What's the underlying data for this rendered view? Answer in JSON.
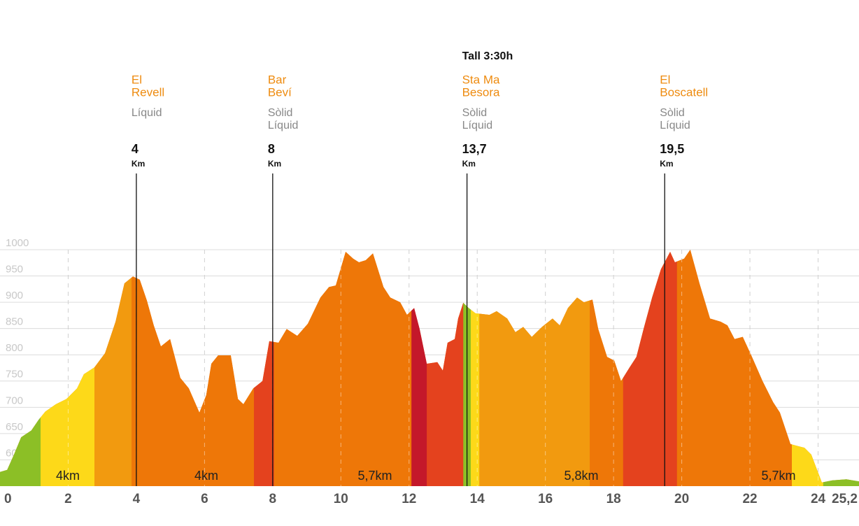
{
  "chart_data": {
    "type": "elevation-profile",
    "x": [
      0,
      0.21,
      0.41,
      0.62,
      0.92,
      1.13,
      1.33,
      1.64,
      1.95,
      2.26,
      2.46,
      2.77,
      3.08,
      3.39,
      3.65,
      3.9,
      4.1,
      4.31,
      4.51,
      4.72,
      4.99,
      5.29,
      5.54,
      5.85,
      6.05,
      6.2,
      6.4,
      6.77,
      6.98,
      7.14,
      7.43,
      7.7,
      7.9,
      8.17,
      8.41,
      8.72,
      9.03,
      9.4,
      9.65,
      9.85,
      10.14,
      10.36,
      10.53,
      10.73,
      10.94,
      11.25,
      11.45,
      11.74,
      11.94,
      12.15,
      12.31,
      12.52,
      12.83,
      12.99,
      13.13,
      13.34,
      13.44,
      13.59,
      13.75,
      13.95,
      14.36,
      14.57,
      14.88,
      15.12,
      15.35,
      15.6,
      15.9,
      16.21,
      16.42,
      16.66,
      16.93,
      17.13,
      17.38,
      17.55,
      17.81,
      18.02,
      18.22,
      18.47,
      18.67,
      18.88,
      19.13,
      19.39,
      19.66,
      19.8,
      20.07,
      20.25,
      20.52,
      20.83,
      21.14,
      21.34,
      21.55,
      21.79,
      22.06,
      22.37,
      22.68,
      22.88,
      23.19,
      23.6,
      23.8,
      24.11,
      24.42,
      24.83,
      25.2
    ],
    "values": [
      577,
      581,
      610,
      643,
      656,
      676,
      692,
      706,
      716,
      736,
      763,
      776,
      803,
      863,
      936,
      949,
      943,
      903,
      856,
      816,
      830,
      756,
      736,
      690,
      723,
      783,
      799,
      799,
      716,
      706,
      736,
      750,
      826,
      823,
      849,
      836,
      859,
      909,
      929,
      932,
      996,
      983,
      976,
      980,
      993,
      929,
      909,
      900,
      876,
      889,
      849,
      783,
      786,
      770,
      823,
      830,
      869,
      899,
      889,
      879,
      876,
      883,
      869,
      843,
      853,
      834,
      853,
      869,
      856,
      889,
      909,
      900,
      905,
      849,
      796,
      789,
      750,
      776,
      796,
      849,
      909,
      963,
      996,
      976,
      983,
      1000,
      936,
      869,
      863,
      856,
      830,
      834,
      796,
      750,
      710,
      690,
      630,
      623,
      610,
      557,
      561,
      563,
      559
    ],
    "segments": [
      {
        "start": 0,
        "end": 1.19,
        "color": "#8cbf26"
      },
      {
        "start": 1.19,
        "end": 2.77,
        "color": "#fdd919"
      },
      {
        "start": 2.77,
        "end": 3.86,
        "color": "#f29a0f"
      },
      {
        "start": 3.86,
        "end": 7.45,
        "color": "#ee7708"
      },
      {
        "start": 7.45,
        "end": 8.04,
        "color": "#e4421e"
      },
      {
        "start": 8.04,
        "end": 12.07,
        "color": "#ee7708"
      },
      {
        "start": 12.07,
        "end": 12.52,
        "color": "#c4182a"
      },
      {
        "start": 12.52,
        "end": 13.59,
        "color": "#e4421e"
      },
      {
        "start": 13.59,
        "end": 13.81,
        "color": "#8cbf26"
      },
      {
        "start": 13.81,
        "end": 14.06,
        "color": "#fdd919"
      },
      {
        "start": 14.06,
        "end": 17.3,
        "color": "#f29a0f"
      },
      {
        "start": 17.3,
        "end": 18.28,
        "color": "#ee7708"
      },
      {
        "start": 18.28,
        "end": 19.86,
        "color": "#e4421e"
      },
      {
        "start": 19.86,
        "end": 23.23,
        "color": "#ee7708"
      },
      {
        "start": 23.23,
        "end": 24.15,
        "color": "#fdd919"
      },
      {
        "start": 24.15,
        "end": 25.2,
        "color": "#8cbf26"
      }
    ],
    "distance_labels": [
      "4km",
      "4km",
      "5,7km",
      "5,8km",
      "5,7km"
    ],
    "checkpoints": [
      {
        "name": [
          "El",
          "Revell"
        ],
        "supplies": [
          "Líquid"
        ],
        "km": 4,
        "unit": "Km"
      },
      {
        "name": [
          "Bar",
          "Beví"
        ],
        "supplies": [
          "Sòlid",
          "Líquid"
        ],
        "km": 8,
        "unit": "Km"
      },
      {
        "note": "Tall 3:30h",
        "name": [
          "Sta Ma",
          "Besora"
        ],
        "supplies": [
          "Sòlid",
          "Líquid"
        ],
        "km": {
          "value": 13.7,
          "label": "13,7"
        },
        "unit": "Km"
      },
      {
        "name": [
          "El",
          "Boscatell"
        ],
        "supplies": [
          "Sòlid",
          "Líquid"
        ],
        "km": {
          "value": 19.5,
          "label": "19,5"
        },
        "unit": "Km"
      }
    ],
    "xlim": [
      0,
      25.2
    ],
    "xticks": [
      0,
      2,
      4,
      6,
      8,
      10,
      12,
      14,
      16,
      18,
      20,
      22,
      24,
      {
        "value": 25.2,
        "label": "25,2"
      }
    ],
    "ylim": [
      550,
      1000
    ],
    "yticks": [
      600,
      650,
      700,
      750,
      800,
      850,
      900,
      950,
      1000
    ],
    "grid": true
  }
}
